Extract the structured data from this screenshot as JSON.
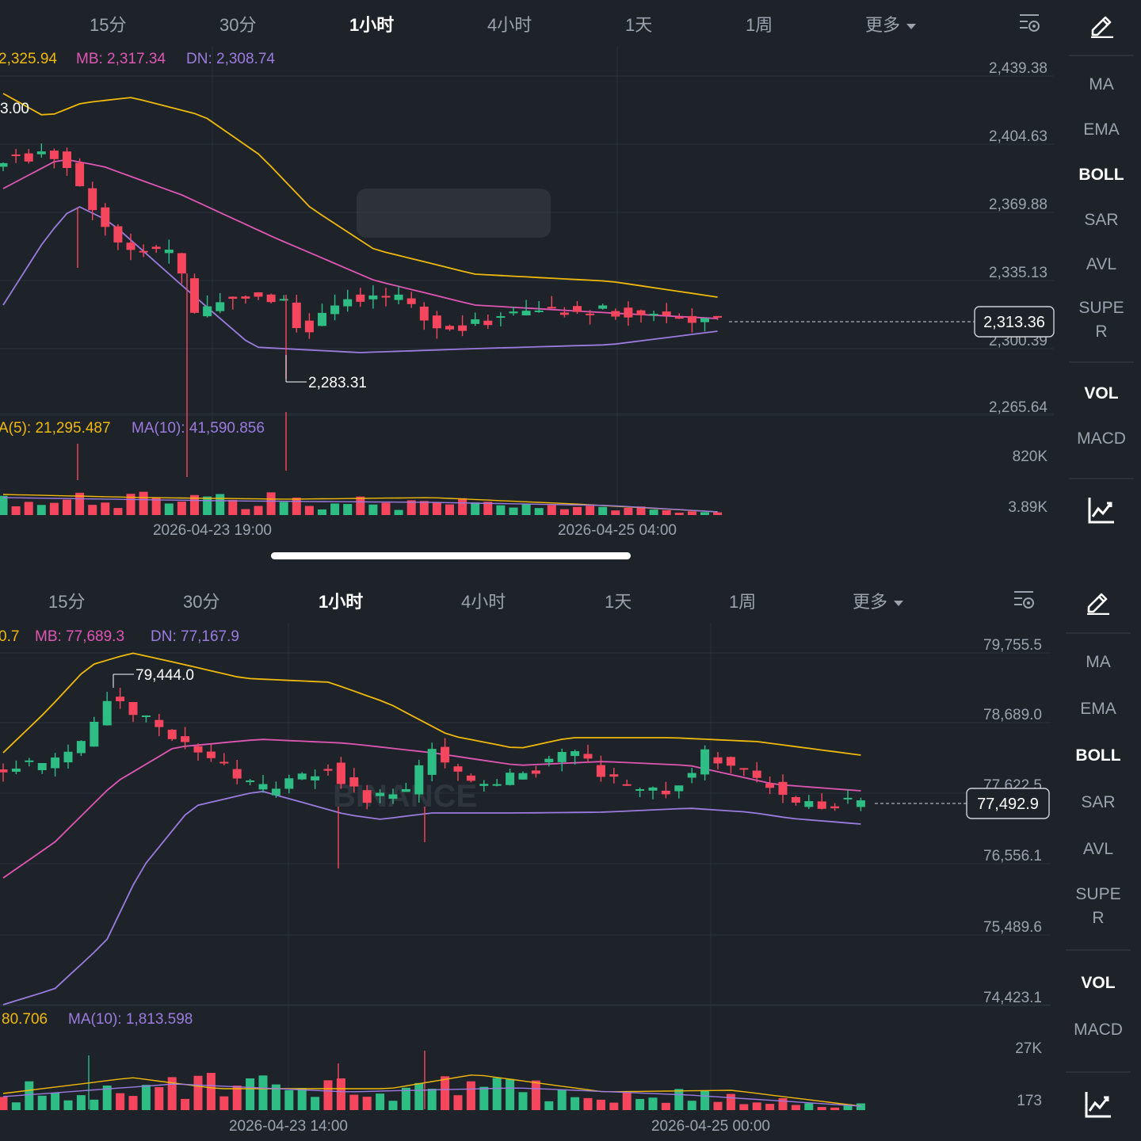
{
  "top": {
    "tabs": [
      "15分",
      "30分",
      "1小时",
      "4小时",
      "1天",
      "1周",
      "更多"
    ],
    "active_tab": "1小时",
    "boll_legend": {
      "up": "2,325.94",
      "mb": "MB: 2,317.34",
      "dn": "DN: 2,308.74"
    },
    "upper_partial_label": "3.00",
    "price_axis": [
      "2,439.38",
      "2,404.63",
      "2,369.88",
      "2,335.13",
      "2,300.39",
      "2,265.64"
    ],
    "current_price": "2,313.36",
    "low_marker": "2,283.31",
    "vol_legend": {
      "ma5": "A(5): 21,295.487",
      "ma10": "MA(10): 41,590.856"
    },
    "vol_axis": [
      "820K",
      "3.89K"
    ],
    "time_axis": [
      "2026-04-23 19:00",
      "2026-04-25 04:00"
    ],
    "sidebar": [
      "MA",
      "EMA",
      "BOLL",
      "SAR",
      "AVL",
      "SUPE",
      "R",
      "VOL",
      "MACD"
    ]
  },
  "bottom": {
    "tabs": [
      "15分",
      "30分",
      "1小时",
      "4小时",
      "1天",
      "1周",
      "更多"
    ],
    "active_tab": "1小时",
    "boll_legend": {
      "up": "0.7",
      "mb": "MB: 77,689.3",
      "dn": "DN: 77,167.9"
    },
    "price_axis": [
      "79,755.5",
      "78,689.0",
      "77,622.5",
      "76,556.1",
      "75,489.6",
      "74,423.1"
    ],
    "current_price": "77,492.9",
    "high_marker": "79,444.0",
    "watermark": "BINANCE",
    "vol_legend": {
      "ma5": "80.706",
      "ma10": "MA(10): 1,813.598"
    },
    "vol_axis": [
      "27K",
      "173"
    ],
    "time_axis": [
      "2026-04-23 14:00",
      "2026-04-25 00:00"
    ],
    "sidebar": [
      "MA",
      "EMA",
      "BOLL",
      "SAR",
      "AVL",
      "SUPE",
      "R",
      "VOL",
      "MACD"
    ]
  },
  "colors": {
    "bg": "#1e2329",
    "up": "#2ebd85",
    "down": "#f6465d",
    "upper_band": "#f0b90b",
    "mid_band": "#e056b5",
    "lower_band": "#9b7be0",
    "grid": "#2b3139"
  },
  "icons": [
    "chart-settings-icon",
    "pencil-icon",
    "line-chart-icon"
  ]
}
